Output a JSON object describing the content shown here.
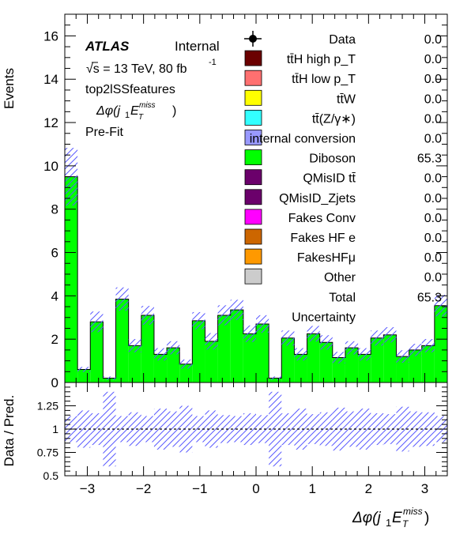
{
  "header": {
    "atlas": "ATLAS",
    "internal": "Internal",
    "energy_lumi": "√s = 13 TeV, 80 fb",
    "lumi_exp": "-1",
    "region": "top2lSSfeatures",
    "variable": "Δφ(j₁E_T^miss)",
    "fit_state": "Pre-Fit"
  },
  "legend": [
    {
      "label": "Data",
      "value": "0.0",
      "kind": "data"
    },
    {
      "label": "tt̄H   high   p_T",
      "value": "0.0",
      "color": "#6b0000"
    },
    {
      "label": "tt̄H   low   p_T",
      "value": "0.0",
      "color": "#ff7070"
    },
    {
      "label": "tt̄W",
      "value": "0.0",
      "color": "#ffff00"
    },
    {
      "label": "tt̄(Z/γ∗)",
      "value": "0.0",
      "color": "#33ffff"
    },
    {
      "label": "internal conversion",
      "value": "0.0",
      "color": "#9999ff"
    },
    {
      "label": "Diboson",
      "value": "65.3",
      "color": "#00ff00"
    },
    {
      "label": "QMisID   tt̄",
      "value": "0.0",
      "color": "#6b006b"
    },
    {
      "label": "QMisID_Zjets",
      "value": "0.0",
      "color": "#6b006b"
    },
    {
      "label": "Fakes Conv",
      "value": "0.0",
      "color": "#ff00ff"
    },
    {
      "label": "Fakes HF e",
      "value": "0.0",
      "color": "#cc6600"
    },
    {
      "label": "FakesHFμ",
      "value": "0.0",
      "color": "#ff9900"
    },
    {
      "label": "Other",
      "value": "0.0",
      "color": "#cccccc"
    },
    {
      "label": "Total",
      "value": "65.3",
      "kind": "total"
    },
    {
      "label": "Uncertainty",
      "value": "",
      "kind": "unc"
    }
  ],
  "chart_data": [
    {
      "type": "bar",
      "stacked_histogram": true,
      "ylabel": "Events",
      "xlim": [
        -3.4,
        3.4
      ],
      "ylim": [
        0,
        17
      ],
      "yticks": [
        0,
        2,
        4,
        6,
        8,
        10,
        12,
        14,
        16
      ],
      "xticks": [
        -3,
        -2,
        -1,
        0,
        1,
        2,
        3
      ],
      "x_edges": [
        -3.4,
        -3.1733,
        -2.9467,
        -2.72,
        -2.4933,
        -2.2667,
        -2.04,
        -1.8133,
        -1.5867,
        -1.36,
        -1.1333,
        -0.9067,
        -0.68,
        -0.4533,
        -0.2267,
        0.0,
        0.2267,
        0.4533,
        0.68,
        0.9067,
        1.1333,
        1.36,
        1.5867,
        1.8133,
        2.04,
        2.2667,
        2.4933,
        2.72,
        2.9467,
        3.1733,
        3.4
      ],
      "series": [
        {
          "name": "Diboson",
          "color": "#00ff00",
          "values": [
            9.5,
            0.6,
            2.8,
            0.2,
            3.85,
            1.7,
            3.1,
            1.3,
            1.6,
            0.85,
            2.85,
            1.9,
            3.1,
            3.35,
            2.25,
            2.7,
            0.2,
            2.05,
            1.3,
            2.25,
            1.85,
            1.15,
            1.6,
            1.3,
            2.05,
            2.2,
            1.2,
            1.5,
            1.7,
            3.55
          ]
        },
        {
          "name": "Data",
          "values": [
            0,
            0,
            0,
            0,
            0,
            0,
            0,
            0,
            0,
            0,
            0,
            0,
            0,
            0,
            0,
            0,
            0,
            0,
            0,
            0,
            0,
            0,
            0,
            0,
            0,
            0,
            0,
            0,
            0,
            0
          ]
        }
      ],
      "uncertainty_rel": [
        0.14,
        0.2,
        0.17,
        0.4,
        0.14,
        0.18,
        0.14,
        0.22,
        0.19,
        0.25,
        0.14,
        0.2,
        0.15,
        0.14,
        0.17,
        0.15,
        0.4,
        0.17,
        0.22,
        0.16,
        0.18,
        0.23,
        0.19,
        0.22,
        0.17,
        0.16,
        0.24,
        0.19,
        0.18,
        0.14
      ]
    },
    {
      "type": "bar",
      "ylabel": "Data / Pred.",
      "xlabel": "Δφ(j₁E_T^miss)",
      "xlim": [
        -3.4,
        3.4
      ],
      "ylim": [
        0.5,
        1.5
      ],
      "yticks": [
        0.5,
        0.75,
        1,
        1.25
      ],
      "xticks": [
        -3,
        -2,
        -1,
        0,
        1,
        2,
        3
      ],
      "reference_line": 1
    }
  ]
}
